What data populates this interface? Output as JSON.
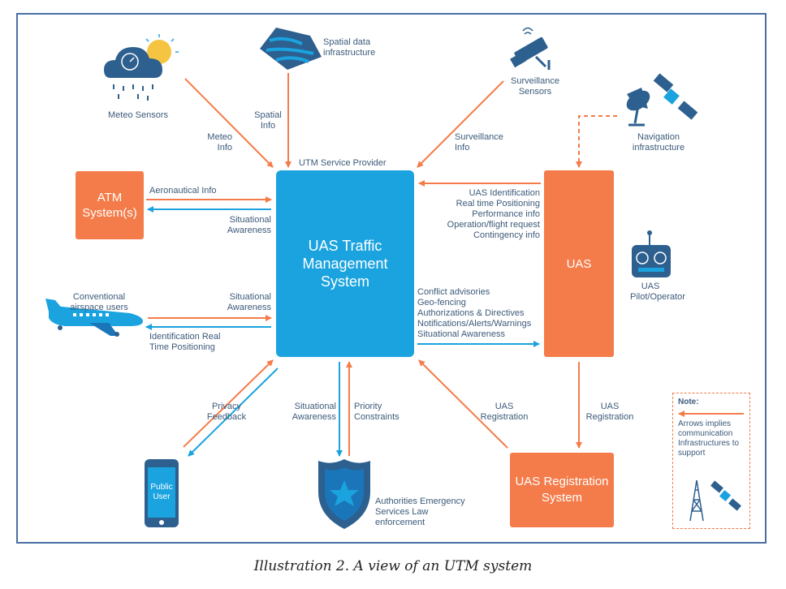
{
  "central": {
    "provider_label": "UTM Service Provider",
    "title": "UAS Traffic Management System"
  },
  "atm": {
    "title": "ATM System(s)",
    "out_label": "Aeronautical Info",
    "in_label": "Situational Awareness"
  },
  "uas": {
    "title": "UAS",
    "to_utm": [
      "UAS Identification",
      "Real time Positioning",
      "Performance info",
      "Operation/flight request",
      "Contingency info"
    ],
    "from_utm": [
      "Conflict advisories",
      "Geo-fencing",
      "Authorizations & Directives",
      "Notifications/Alerts/Warnings",
      "Situational Awareness"
    ]
  },
  "registration": {
    "title": "UAS Registration System",
    "from_uas_label": "UAS Registration",
    "to_utm_label": "UAS Registration"
  },
  "sources": {
    "meteo": {
      "name": "Meteo Sensors",
      "arrow_label": "Meteo Info"
    },
    "spatial": {
      "name": "Spatial data infrastructure",
      "arrow_label": "Spatial Info"
    },
    "surveillance": {
      "name": "Surveillance Sensors",
      "arrow_label": "Surveillance Info"
    },
    "navigation": {
      "name": "Navigation infrastructure"
    }
  },
  "pilot": {
    "name": "UAS Pilot/Operator"
  },
  "airspace": {
    "name": "Conventional airspace users",
    "in_label": "Situational Awareness",
    "out_label": "Identification Real Time Positioning"
  },
  "public": {
    "device_label": "Public User",
    "arrow_label": "Privacy Feedback"
  },
  "authorities": {
    "name": "Authorities Emergency Services Law enforcement",
    "down_label": "Situational Awareness",
    "up_label": "Priority Constraints"
  },
  "note": {
    "title": "Note:",
    "text": "Arrows implies communication Infrastructures to support"
  },
  "caption": "Illustration 2. A view of an UTM system",
  "colors": {
    "orange": "#f47c4a",
    "blue": "#1aa3df",
    "navy": "#2d5f8f",
    "frame": "#4a6fa5"
  },
  "icons": [
    "cloud-sensor-icon",
    "map-icon",
    "camera-icon",
    "satellite-dish-icon",
    "satellite-icon",
    "airplane-icon",
    "phone-icon",
    "badge-icon",
    "remote-controller-icon",
    "tower-icon"
  ]
}
